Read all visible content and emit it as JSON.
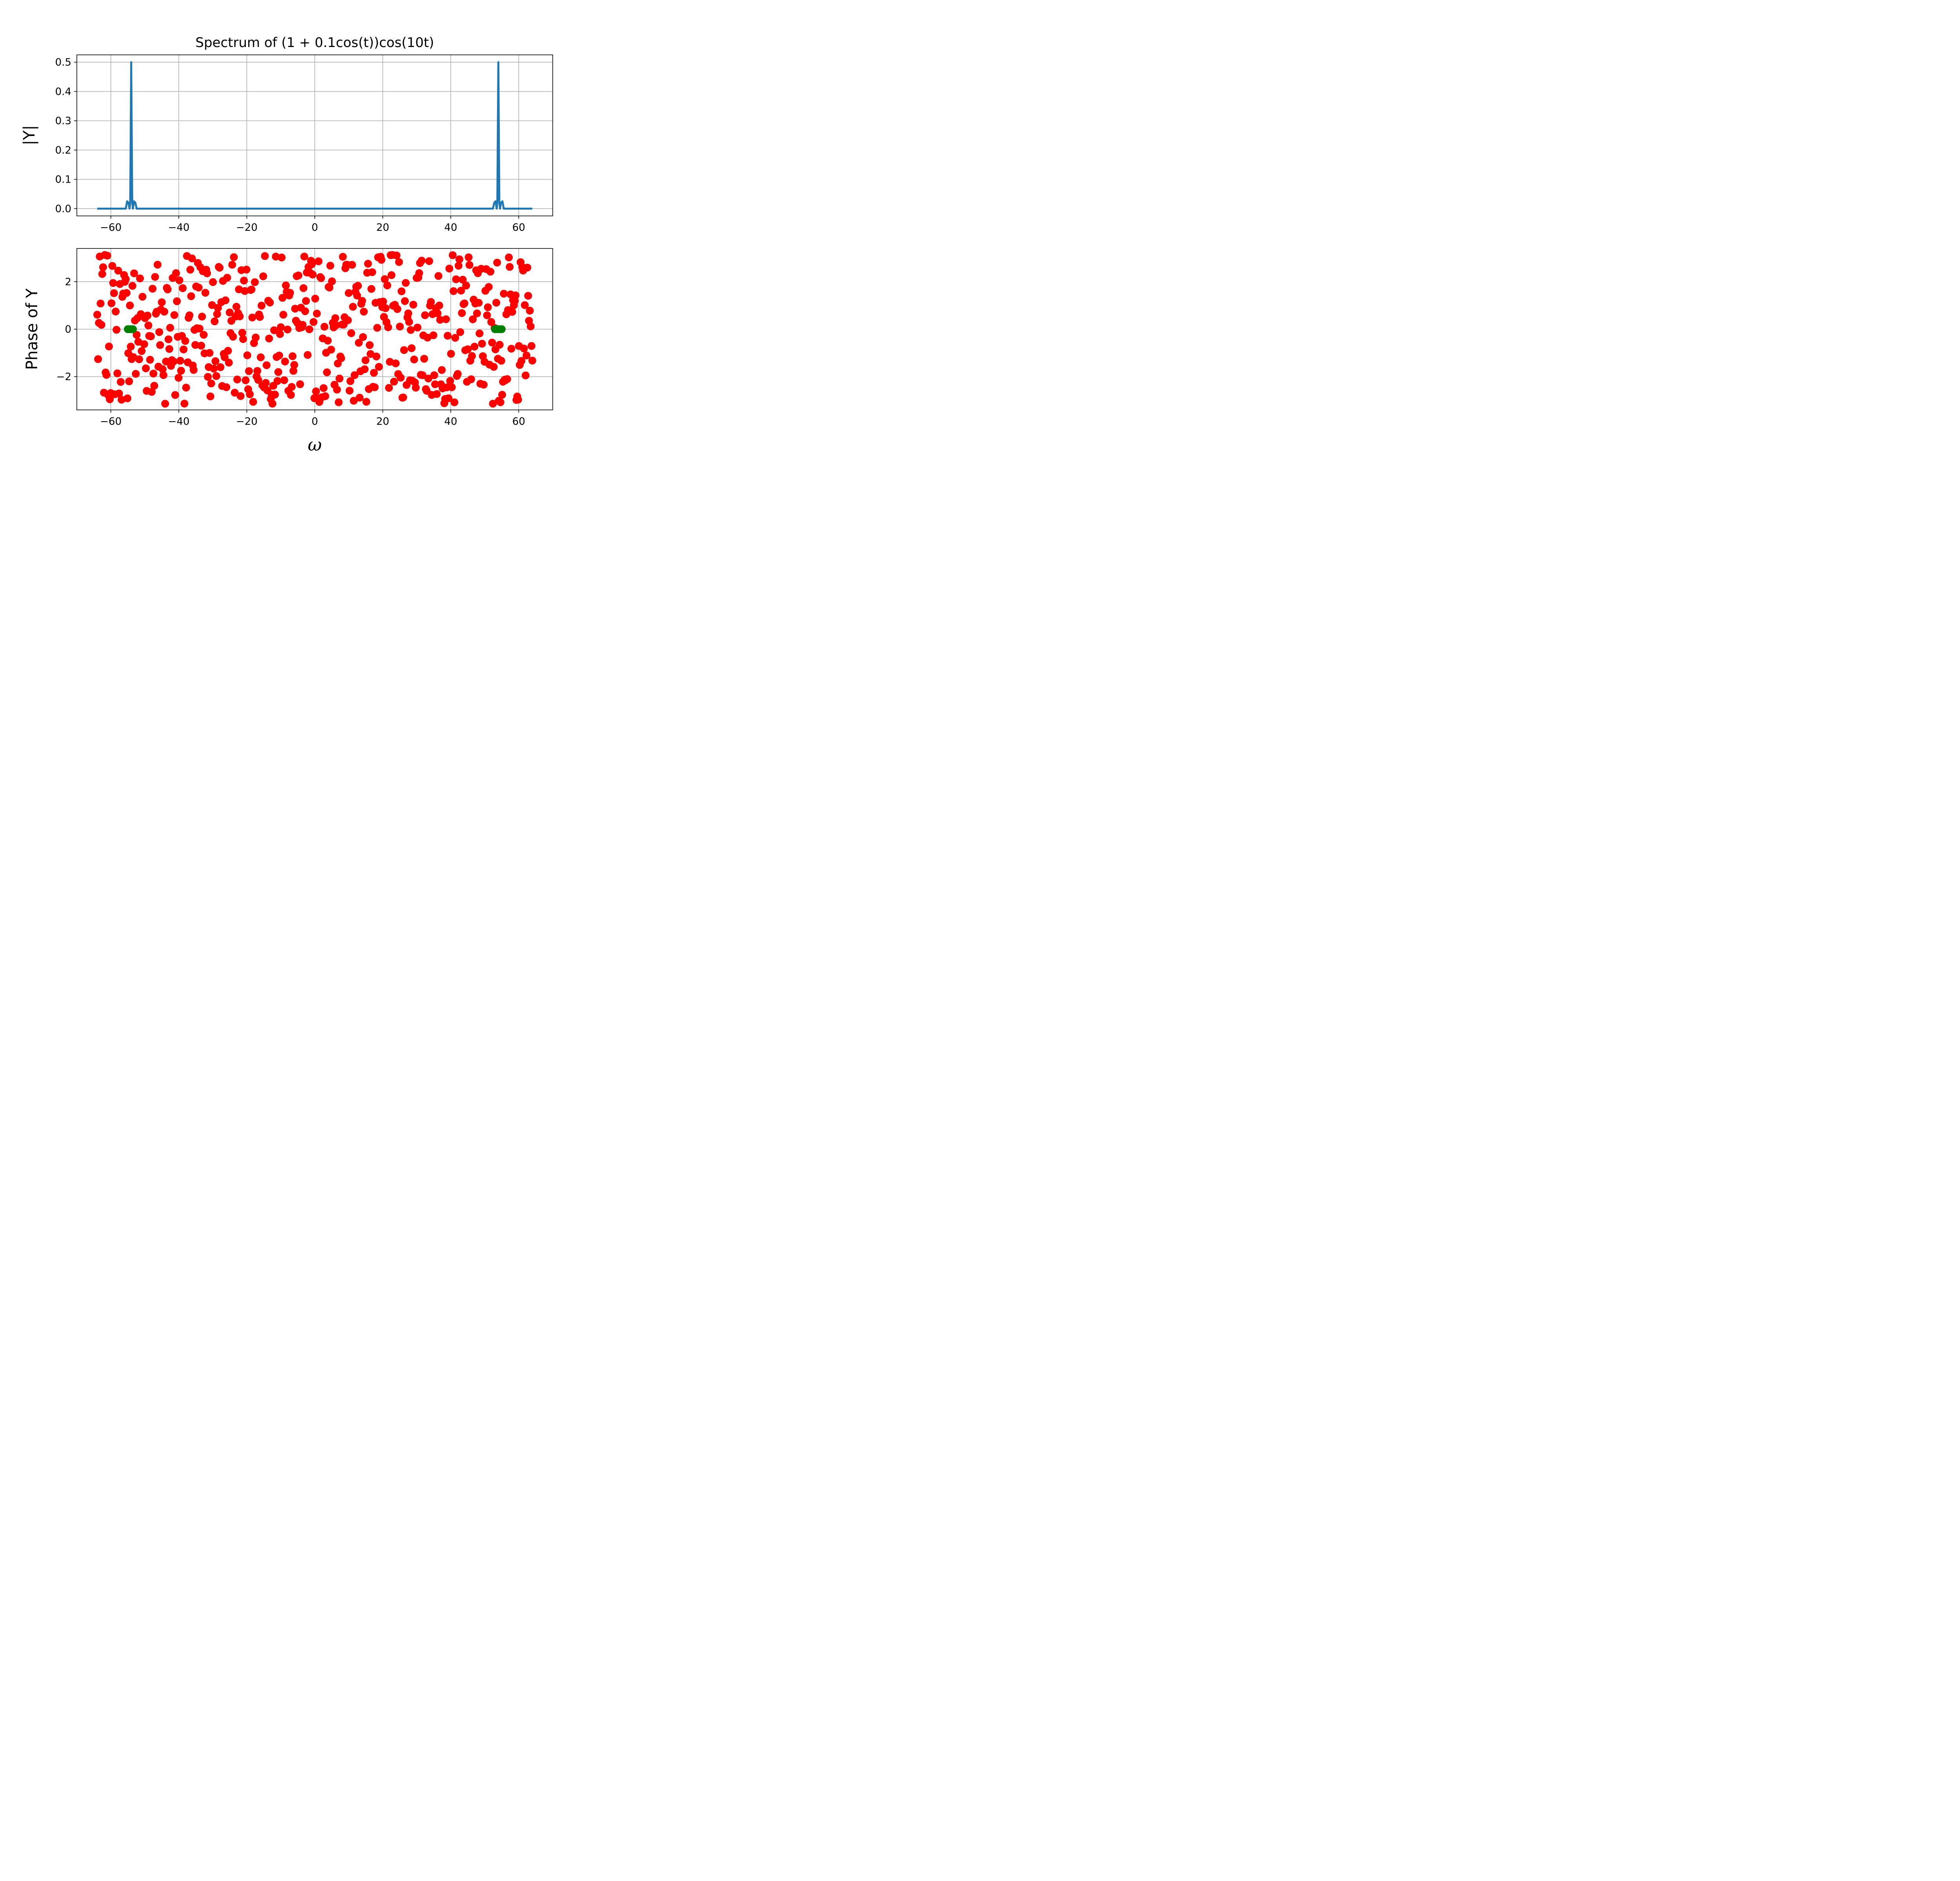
{
  "chart_data": [
    {
      "type": "line",
      "title": "Spectrum of (1 + 0.1cos(t))cos(10t)",
      "xlabel": "",
      "ylabel": "|Y|",
      "xlim": [
        -70,
        70
      ],
      "ylim": [
        -0.025,
        0.525
      ],
      "xticks": [
        -60,
        -40,
        -20,
        0,
        20,
        40,
        60
      ],
      "xtick_labels": [
        "−60",
        "−40",
        "−20",
        "0",
        "20",
        "40",
        "60"
      ],
      "yticks": [
        0.0,
        0.1,
        0.2,
        0.3,
        0.4,
        0.5
      ],
      "ytick_labels": [
        "0.0",
        "0.1",
        "0.2",
        "0.3",
        "0.4",
        "0.5"
      ],
      "grid": true,
      "color": "#1f77b4",
      "series": [
        {
          "x": [
            -64,
            -55.6,
            -55.2,
            -54.8,
            -54.5,
            -54.3,
            -54.0,
            -53.7,
            -53.5,
            -53.2,
            -52.8,
            -52.4,
            52.4,
            52.8,
            53.2,
            53.5,
            53.7,
            54.0,
            54.3,
            54.5,
            54.8,
            55.2,
            55.6,
            64
          ],
          "y": [
            0,
            0,
            0.025,
            0.02,
            0,
            0.02,
            0.5,
            0.02,
            0,
            0.025,
            0.02,
            0,
            0,
            0.02,
            0.025,
            0,
            0.02,
            0.5,
            0.02,
            0,
            0.02,
            0.025,
            0,
            0
          ]
        }
      ]
    },
    {
      "type": "scatter",
      "xlabel": "ω",
      "ylabel": "Phase of Y",
      "xlim": [
        -70,
        70
      ],
      "ylim": [
        -3.4,
        3.4
      ],
      "xticks": [
        -60,
        -40,
        -20,
        0,
        20,
        40,
        60
      ],
      "xtick_labels": [
        "−60",
        "−40",
        "−20",
        "0",
        "20",
        "40",
        "60"
      ],
      "yticks": [
        -2,
        0,
        2
      ],
      "ytick_labels": [
        "−2",
        "0",
        "2"
      ],
      "grid": true,
      "colors": {
        "noise": "#ff0000",
        "peaks": "#008000"
      },
      "phase_random_seed": 7,
      "phase_points_count": 520,
      "peak_points": {
        "x": [
          -55.0,
          -54.5,
          -54.0,
          -53.5,
          53.0,
          53.5,
          54.0,
          54.5,
          55.0
        ],
        "y": [
          0,
          0,
          0,
          0,
          0,
          0,
          0,
          0,
          0
        ]
      }
    }
  ]
}
